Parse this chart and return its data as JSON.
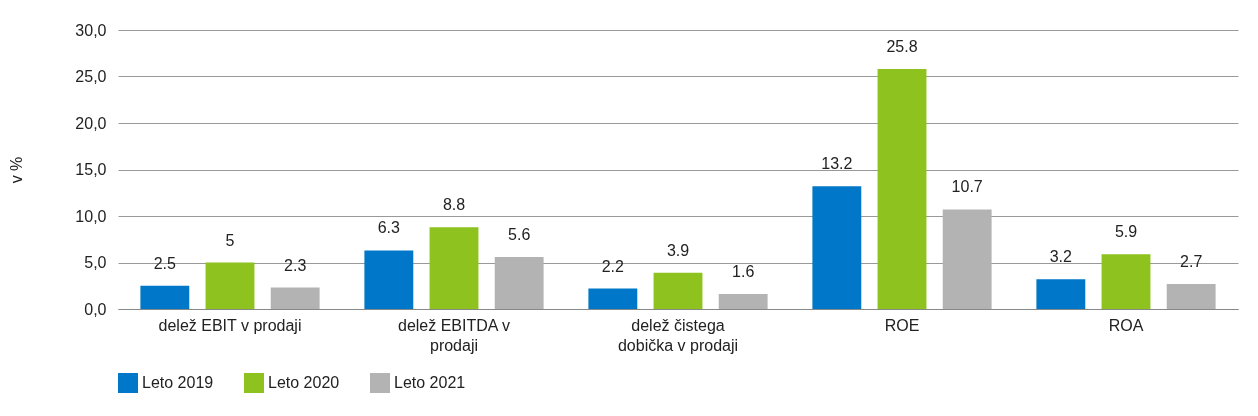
{
  "chart_data": {
    "type": "bar",
    "ylabel": "v %",
    "categories": [
      "delež EBIT v prodaji",
      "delež EBITDA v prodaji",
      "delež čistega dobička v prodaji",
      "ROE",
      "ROA"
    ],
    "series": [
      {
        "name": "Leto 2019",
        "color": "#0077c8",
        "values": [
          2.5,
          6.3,
          2.2,
          13.2,
          3.2
        ]
      },
      {
        "name": "Leto 2020",
        "color": "#8dc21f",
        "values": [
          5,
          8.8,
          3.9,
          25.8,
          5.9
        ]
      },
      {
        "name": "Leto 2021",
        "color": "#b3b3b3",
        "values": [
          2.3,
          5.6,
          1.6,
          10.7,
          2.7
        ]
      }
    ],
    "ylim": [
      0,
      30
    ],
    "yticks": [
      {
        "value": 0,
        "label": "0,0"
      },
      {
        "value": 5,
        "label": "5,0"
      },
      {
        "value": 10,
        "label": "10,0"
      },
      {
        "value": 15,
        "label": "15,0"
      },
      {
        "value": 20,
        "label": "20,0"
      },
      {
        "value": 25,
        "label": "25,0"
      },
      {
        "value": 30,
        "label": "30,0"
      }
    ],
    "grid": "y",
    "legend": "bottom",
    "data_labels": true
  }
}
